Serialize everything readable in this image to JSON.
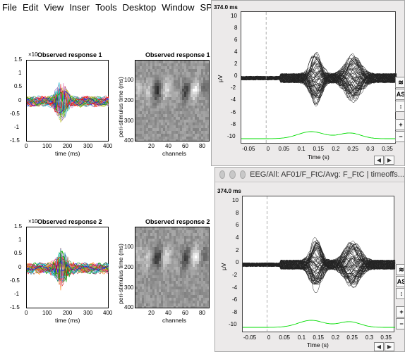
{
  "menu": [
    "File",
    "Edit",
    "View",
    "Inser",
    "Tools",
    "Desktop",
    "Window",
    "SPM Figur"
  ],
  "colors": {
    "grid_dark": "#222222",
    "green_trace": "#00dd00",
    "window_bg": "#eceaea"
  },
  "spm": {
    "panels": [
      {
        "line_title": "Observed response 1",
        "line_exponent": "×10",
        "line_xlabel": "time (ms)",
        "line_yticks": [
          "1.5",
          "1",
          "0.5",
          "0",
          "-0.5",
          "-1",
          "-1.5"
        ],
        "line_xticks": [
          "0",
          "100",
          "200",
          "300",
          "400"
        ],
        "image_title": "Observed response 1",
        "image_ylabel": "peri-stimulus time (ms)",
        "image_xlabel": "channels",
        "image_yticks": [
          "100",
          "200",
          "300",
          "400"
        ],
        "image_xticks": [
          "20",
          "40",
          "60",
          "80"
        ]
      },
      {
        "line_title": "Observed response 2",
        "line_exponent": "×10",
        "line_xlabel": "time (ms)",
        "line_yticks": [
          "1.5",
          "1",
          "0.5",
          "0",
          "-0.5",
          "-1",
          "-1.5"
        ],
        "line_xticks": [
          "0",
          "100",
          "200",
          "300",
          "400"
        ],
        "image_title": "Observed response 2",
        "image_ylabel": "peri-stimulus time (ms)",
        "image_xlabel": "channels",
        "image_yticks": [
          "100",
          "200",
          "300",
          "400"
        ],
        "image_xticks": [
          "20",
          "40",
          "60",
          "80"
        ]
      }
    ]
  },
  "eeg_windows": [
    {
      "title": "",
      "time_readout": "374.0 ms",
      "ylabel": "μV",
      "xlabel": "Time (s)",
      "yticks": [
        "10",
        "8",
        "6",
        "4",
        "2",
        "0",
        "-2",
        "-4",
        "-6",
        "-8",
        "-10"
      ],
      "xticks": [
        "-0.05",
        "0",
        "0.05",
        "0.1",
        "0.15",
        "0.2",
        "0.25",
        "0.3",
        "0.35"
      ],
      "side_buttons": [
        "AS",
        "+",
        "−"
      ]
    },
    {
      "title": "EEG/All: AF01/F_FtC/Avg: F_FtC  | timeoffs...",
      "time_readout": "374.0 ms",
      "ylabel": "μV",
      "xlabel": "Time (s)",
      "yticks": [
        "10",
        "8",
        "6",
        "4",
        "2",
        "0",
        "-2",
        "-4",
        "-6",
        "-8",
        "-10"
      ],
      "xticks": [
        "-0.05",
        "0",
        "0.05",
        "0.1",
        "0.15",
        "0.2",
        "0.25",
        "0.3",
        "0.35"
      ],
      "side_buttons": [
        "AS",
        "+",
        "−"
      ]
    }
  ]
}
